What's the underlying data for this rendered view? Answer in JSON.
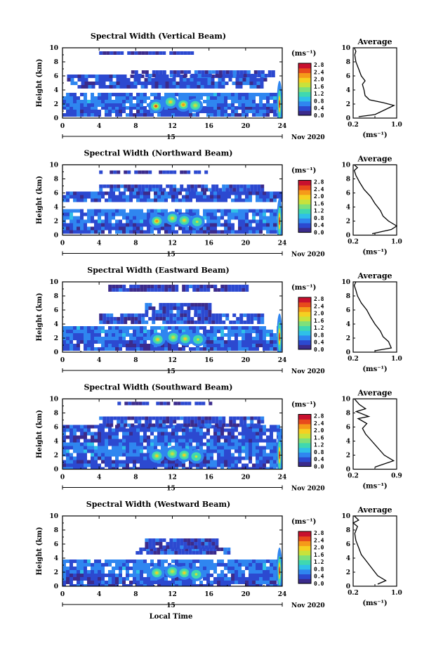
{
  "figure": {
    "xlabel": "Local Time",
    "date_label": "Nov 2020",
    "day_label": "15",
    "units_label": "(ms⁻¹)",
    "avg_title": "Average",
    "avg_xlabel": "(ms⁻¹)"
  },
  "colorbar": {
    "ticks": [
      "2.8",
      "2.4",
      "2.0",
      "1.6",
      "1.2",
      "0.8",
      "0.4",
      "0.0"
    ],
    "colors": [
      "#3b2b8c",
      "#2c49d0",
      "#2f86f0",
      "#2fc0e8",
      "#3fd8b0",
      "#7ee07a",
      "#c8e23c",
      "#f5d021",
      "#f59a1a",
      "#e84a1c",
      "#c8102e"
    ]
  },
  "chart_data": [
    {
      "type": "heatmap",
      "title": "Spectral Width (Vertical Beam)",
      "xlabel": "Local Time",
      "ylabel": "Height (km)",
      "xlim": [
        0,
        24
      ],
      "ylim": [
        0,
        10
      ],
      "xticks": [
        0,
        4,
        8,
        12,
        16,
        20,
        24
      ],
      "yticks": [
        0,
        2,
        4,
        6,
        8,
        10
      ],
      "layers": [
        {
          "x": [
            0,
            24
          ],
          "y": [
            0.5,
            1.7
          ],
          "value": 0.3
        },
        {
          "x": [
            0,
            24
          ],
          "y": [
            1.7,
            3.6
          ],
          "value": 0.5
        },
        {
          "x": [
            0.5,
            22
          ],
          "y": [
            4.2,
            6.2
          ],
          "value": 0.3
        },
        {
          "x": [
            7.5,
            23
          ],
          "y": [
            6.2,
            6.8
          ],
          "value": 0.25
        },
        {
          "x": [
            4,
            14
          ],
          "y": [
            9.2,
            9.5
          ],
          "value": 0.2
        }
      ],
      "hotspots": [
        {
          "x": 10.2,
          "y": 1.7,
          "value": 2.4
        },
        {
          "x": 11.8,
          "y": 2.3,
          "value": 2.0
        },
        {
          "x": 13.2,
          "y": 1.9,
          "value": 2.2
        },
        {
          "x": 14.5,
          "y": 1.8,
          "value": 1.8
        },
        {
          "x": 23.7,
          "y": 2.0,
          "value": 2.8
        }
      ],
      "average": {
        "xlim": [
          0.2,
          1.0
        ],
        "xticks": [
          "0.2",
          "0.6",
          "1.0"
        ],
        "profile": [
          [
            0.3,
            0.2
          ],
          [
            0.6,
            0.5
          ],
          [
            0.95,
            1.8
          ],
          [
            0.75,
            2.2
          ],
          [
            0.5,
            2.6
          ],
          [
            0.42,
            3.2
          ],
          [
            0.4,
            4.0
          ],
          [
            0.37,
            4.8
          ],
          [
            0.42,
            5.3
          ],
          [
            0.35,
            6.0
          ],
          [
            0.3,
            7.0
          ],
          [
            0.25,
            8.0
          ],
          [
            0.23,
            9.0
          ],
          [
            0.25,
            9.5
          ],
          [
            0.22,
            10.0
          ]
        ]
      }
    },
    {
      "type": "heatmap",
      "title": "Spectral Width (Northward Beam)",
      "xlabel": "Local Time",
      "ylabel": "Height (km)",
      "xlim": [
        0,
        24
      ],
      "ylim": [
        0,
        10
      ],
      "xticks": [
        0,
        4,
        8,
        12,
        16,
        20,
        24
      ],
      "yticks": [
        0,
        2,
        4,
        6,
        8,
        10
      ],
      "layers": [
        {
          "x": [
            0,
            24
          ],
          "y": [
            0.2,
            1.7
          ],
          "value": 0.3
        },
        {
          "x": [
            0,
            24
          ],
          "y": [
            1.7,
            3.7
          ],
          "value": 0.5
        },
        {
          "x": [
            0,
            24
          ],
          "y": [
            5.0,
            6.2
          ],
          "value": 0.3
        },
        {
          "x": [
            4,
            22
          ],
          "y": [
            6.2,
            7.2
          ],
          "value": 0.25
        },
        {
          "x": [
            4,
            16
          ],
          "y": [
            8.8,
            9.2
          ],
          "value": 0.2
        }
      ],
      "hotspots": [
        {
          "x": 10.3,
          "y": 2.0,
          "value": 2.2
        },
        {
          "x": 12.0,
          "y": 2.4,
          "value": 2.0
        },
        {
          "x": 13.3,
          "y": 2.1,
          "value": 2.0
        },
        {
          "x": 14.7,
          "y": 1.9,
          "value": 1.6
        },
        {
          "x": 23.7,
          "y": 2.0,
          "value": 2.8
        }
      ],
      "average": {
        "xlim": [
          0.2,
          1.0
        ],
        "xticks": [
          "0.2",
          "0.6",
          "1.0"
        ],
        "profile": [
          [
            0.55,
            0.2
          ],
          [
            0.9,
            0.8
          ],
          [
            1.0,
            1.3
          ],
          [
            0.85,
            2.0
          ],
          [
            0.75,
            2.7
          ],
          [
            0.7,
            3.5
          ],
          [
            0.6,
            4.5
          ],
          [
            0.52,
            5.5
          ],
          [
            0.4,
            6.5
          ],
          [
            0.32,
            7.5
          ],
          [
            0.25,
            8.5
          ],
          [
            0.22,
            9.2
          ],
          [
            0.28,
            9.6
          ],
          [
            0.22,
            10.0
          ]
        ]
      }
    },
    {
      "type": "heatmap",
      "title": "Spectral Width (Eastward Beam)",
      "xlabel": "Local Time",
      "ylabel": "Height (km)",
      "xlim": [
        0,
        24
      ],
      "ylim": [
        0,
        10
      ],
      "xticks": [
        0,
        4,
        8,
        12,
        16,
        20,
        24
      ],
      "yticks": [
        0,
        2,
        4,
        6,
        8,
        10
      ],
      "layers": [
        {
          "x": [
            0,
            24
          ],
          "y": [
            0.3,
            1.7
          ],
          "value": 0.3
        },
        {
          "x": [
            0,
            24
          ],
          "y": [
            1.7,
            3.7
          ],
          "value": 0.5
        },
        {
          "x": [
            4,
            22
          ],
          "y": [
            4.0,
            5.5
          ],
          "value": 0.3
        },
        {
          "x": [
            9,
            16
          ],
          "y": [
            5.5,
            7.0
          ],
          "value": 0.25
        },
        {
          "x": [
            5,
            20
          ],
          "y": [
            8.8,
            9.6
          ],
          "value": 0.2
        }
      ],
      "hotspots": [
        {
          "x": 10.4,
          "y": 1.8,
          "value": 2.0
        },
        {
          "x": 12.1,
          "y": 2.1,
          "value": 1.8
        },
        {
          "x": 13.4,
          "y": 1.9,
          "value": 2.0
        },
        {
          "x": 14.8,
          "y": 1.8,
          "value": 1.6
        },
        {
          "x": 23.7,
          "y": 2.2,
          "value": 2.8
        }
      ],
      "average": {
        "xlim": [
          0.2,
          1.0
        ],
        "xticks": [
          "0.2",
          "0.6",
          "1.0"
        ],
        "profile": [
          [
            0.6,
            0.2
          ],
          [
            0.9,
            0.6
          ],
          [
            0.85,
            1.5
          ],
          [
            0.75,
            2.2
          ],
          [
            0.7,
            3.0
          ],
          [
            0.6,
            4.0
          ],
          [
            0.52,
            5.0
          ],
          [
            0.45,
            6.0
          ],
          [
            0.35,
            7.0
          ],
          [
            0.28,
            8.0
          ],
          [
            0.25,
            8.8
          ],
          [
            0.22,
            9.5
          ],
          [
            0.25,
            10.0
          ]
        ]
      }
    },
    {
      "type": "heatmap",
      "title": "Spectral Width (Southward Beam)",
      "xlabel": "Local Time",
      "ylabel": "Height (km)",
      "xlim": [
        0,
        24
      ],
      "ylim": [
        0,
        10
      ],
      "xticks": [
        0,
        4,
        8,
        12,
        16,
        20,
        24
      ],
      "yticks": [
        0,
        2,
        4,
        6,
        8,
        10
      ],
      "layers": [
        {
          "x": [
            0,
            24
          ],
          "y": [
            0.2,
            1.8
          ],
          "value": 0.3
        },
        {
          "x": [
            0,
            24
          ],
          "y": [
            1.8,
            3.8
          ],
          "value": 0.5
        },
        {
          "x": [
            0,
            24
          ],
          "y": [
            4.2,
            6.3
          ],
          "value": 0.3
        },
        {
          "x": [
            4,
            22
          ],
          "y": [
            6.3,
            7.5
          ],
          "value": 0.25
        },
        {
          "x": [
            6,
            16
          ],
          "y": [
            9.2,
            9.6
          ],
          "value": 0.2
        }
      ],
      "hotspots": [
        {
          "x": 10.3,
          "y": 1.9,
          "value": 2.0
        },
        {
          "x": 12.0,
          "y": 2.2,
          "value": 1.8
        },
        {
          "x": 13.3,
          "y": 2.0,
          "value": 2.0
        },
        {
          "x": 14.6,
          "y": 1.8,
          "value": 1.6
        },
        {
          "x": 23.7,
          "y": 2.0,
          "value": 2.8
        }
      ],
      "average": {
        "xlim": [
          0.2,
          0.9
        ],
        "xticks": [
          "0.2",
          "0.6",
          "0.9"
        ],
        "profile": [
          [
            0.55,
            0.3
          ],
          [
            0.85,
            1.2
          ],
          [
            0.7,
            2.0
          ],
          [
            0.6,
            3.0
          ],
          [
            0.5,
            4.0
          ],
          [
            0.4,
            5.0
          ],
          [
            0.35,
            5.8
          ],
          [
            0.42,
            6.5
          ],
          [
            0.28,
            7.2
          ],
          [
            0.45,
            7.5
          ],
          [
            0.25,
            8.2
          ],
          [
            0.4,
            8.6
          ],
          [
            0.3,
            9.2
          ],
          [
            0.22,
            10.0
          ]
        ]
      }
    },
    {
      "type": "heatmap",
      "title": "Spectral Width (Westward Beam)",
      "xlabel": "Local Time",
      "ylabel": "Height (km)",
      "xlim": [
        0,
        24
      ],
      "ylim": [
        0,
        10
      ],
      "xticks": [
        0,
        4,
        8,
        12,
        16,
        20,
        24
      ],
      "yticks": [
        0,
        2,
        4,
        6,
        8,
        10
      ],
      "layers": [
        {
          "x": [
            0,
            24
          ],
          "y": [
            0.2,
            1.8
          ],
          "value": 0.3
        },
        {
          "x": [
            0,
            24
          ],
          "y": [
            1.8,
            3.8
          ],
          "value": 0.5
        },
        {
          "x": [
            8,
            18
          ],
          "y": [
            4.5,
            5.5
          ],
          "value": 0.3
        },
        {
          "x": [
            9,
            17
          ],
          "y": [
            5.5,
            6.8
          ],
          "value": 0.25
        }
      ],
      "hotspots": [
        {
          "x": 10.3,
          "y": 1.9,
          "value": 2.0
        },
        {
          "x": 12.0,
          "y": 2.1,
          "value": 1.8
        },
        {
          "x": 13.3,
          "y": 1.9,
          "value": 2.0
        },
        {
          "x": 14.6,
          "y": 1.7,
          "value": 1.6
        },
        {
          "x": 23.7,
          "y": 2.2,
          "value": 2.8
        }
      ],
      "average": {
        "xlim": [
          0.2,
          1.0
        ],
        "xticks": [
          "0.2",
          "0.6",
          "1.0"
        ],
        "profile": [
          [
            0.65,
            0.3
          ],
          [
            0.8,
            0.8
          ],
          [
            0.65,
            1.5
          ],
          [
            0.55,
            2.5
          ],
          [
            0.45,
            3.5
          ],
          [
            0.35,
            4.5
          ],
          [
            0.3,
            5.5
          ],
          [
            0.25,
            6.5
          ],
          [
            0.23,
            7.5
          ],
          [
            0.28,
            8.5
          ],
          [
            0.2,
            9.0
          ],
          [
            0.3,
            9.4
          ],
          [
            0.22,
            10.0
          ]
        ]
      }
    }
  ]
}
